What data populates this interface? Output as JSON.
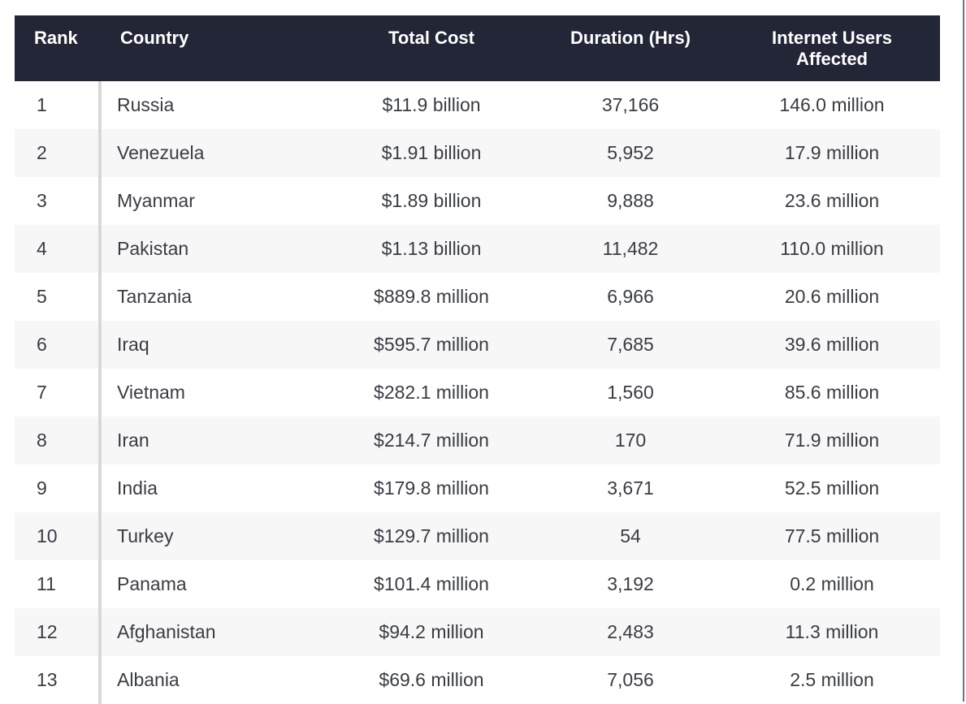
{
  "chart_data": {
    "type": "table",
    "columns": [
      "Rank",
      "Country",
      "Total Cost",
      "Duration (Hrs)",
      "Internet Users Affected"
    ],
    "rows": [
      [
        "1",
        "Russia",
        "$11.9 billion",
        "37,166",
        "146.0 million"
      ],
      [
        "2",
        "Venezuela",
        "$1.91 billion",
        "5,952",
        "17.9 million"
      ],
      [
        "3",
        "Myanmar",
        "$1.89 billion",
        "9,888",
        "23.6 million"
      ],
      [
        "4",
        "Pakistan",
        "$1.13 billion",
        "11,482",
        "110.0 million"
      ],
      [
        "5",
        "Tanzania",
        "$889.8 million",
        "6,966",
        "20.6 million"
      ],
      [
        "6",
        "Iraq",
        "$595.7 million",
        "7,685",
        "39.6 million"
      ],
      [
        "7",
        "Vietnam",
        "$282.1 million",
        "1,560",
        "85.6 million"
      ],
      [
        "8",
        "Iran",
        "$214.7 million",
        "170",
        "71.9 million"
      ],
      [
        "9",
        "India",
        "$179.8 million",
        "3,671",
        "52.5 million"
      ],
      [
        "10",
        "Turkey",
        "$129.7 million",
        "54",
        "77.5 million"
      ],
      [
        "11",
        "Panama",
        "$101.4 million",
        "3,192",
        "0.2 million"
      ],
      [
        "12",
        "Afghanistan",
        "$94.2 million",
        "2,483",
        "11.3 million"
      ],
      [
        "13",
        "Albania",
        "$69.6 million",
        "7,056",
        "2.5 million"
      ]
    ],
    "title": "",
    "legend_position": "none",
    "grid": "zebra-stripes"
  },
  "colors": {
    "header_bg": "#232637",
    "header_text": "#ffffff",
    "body_text": "#393c43",
    "stripe": "#f7f7f8",
    "divider": "#d8d8d8",
    "page_bg": "#ffffff"
  }
}
